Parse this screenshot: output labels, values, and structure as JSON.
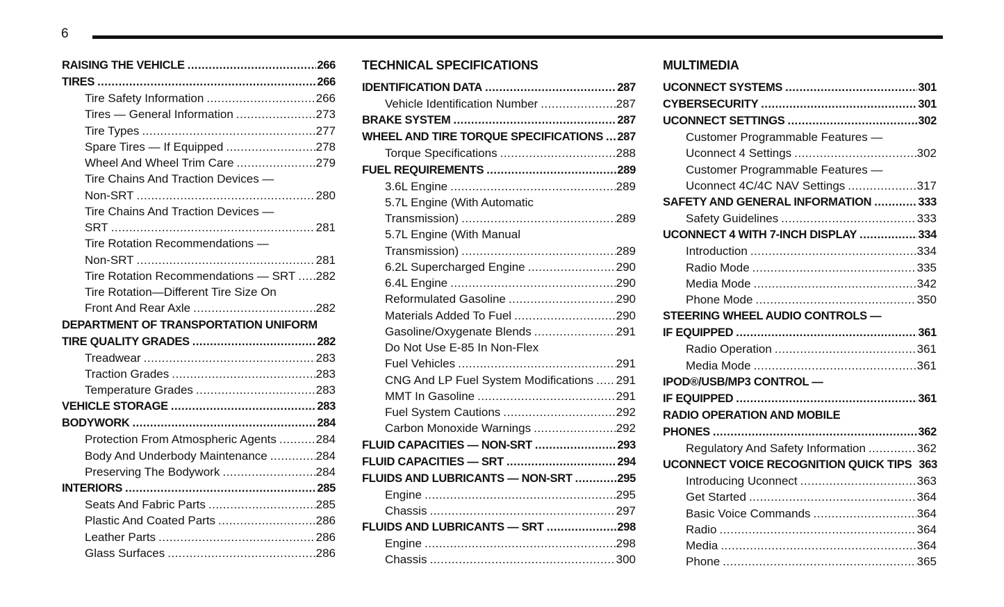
{
  "page_number": "6",
  "columns": [
    {
      "heading": "",
      "entries": [
        {
          "t": "RAISING THE VEHICLE",
          "p": "266",
          "b": true
        },
        {
          "t": "TIRES",
          "p": "266",
          "b": true
        },
        {
          "t": "Tire Safety Information",
          "p": "266",
          "i": true
        },
        {
          "t": "Tires — General Information",
          "p": "273",
          "i": true
        },
        {
          "t": "Tire Types",
          "p": "277",
          "i": true
        },
        {
          "t": "Spare Tires — If Equipped",
          "p": "278",
          "i": true
        },
        {
          "t": "Wheel And Wheel Trim Care",
          "p": "279",
          "i": true
        },
        {
          "t": "Tire Chains And Traction Devices —",
          "i": true
        },
        {
          "t": "Non-SRT",
          "p": "280",
          "i": true
        },
        {
          "t": "Tire Chains And Traction Devices —",
          "i": true
        },
        {
          "t": "SRT",
          "p": "281",
          "i": true
        },
        {
          "t": "Tire Rotation Recommendations —",
          "i": true
        },
        {
          "t": "Non-SRT",
          "p": "281",
          "i": true
        },
        {
          "t": "Tire Rotation Recommendations — SRT",
          "p": "282",
          "i": true
        },
        {
          "t": "Tire Rotation—Different Tire Size On",
          "i": true
        },
        {
          "t": "Front And Rear Axle",
          "p": "282",
          "i": true
        },
        {
          "t": "DEPARTMENT OF TRANSPORTATION UNIFORM",
          "b": true
        },
        {
          "t": "TIRE QUALITY GRADES",
          "p": "282",
          "b": true
        },
        {
          "t": "Treadwear",
          "p": "283",
          "i": true
        },
        {
          "t": "Traction Grades",
          "p": "283",
          "i": true
        },
        {
          "t": "Temperature Grades",
          "p": "283",
          "i": true
        },
        {
          "t": "VEHICLE STORAGE",
          "p": "283",
          "b": true
        },
        {
          "t": "BODYWORK",
          "p": "284",
          "b": true
        },
        {
          "t": "Protection From Atmospheric Agents",
          "p": "284",
          "i": true
        },
        {
          "t": "Body And Underbody Maintenance",
          "p": "284",
          "i": true
        },
        {
          "t": "Preserving The Bodywork",
          "p": "284",
          "i": true
        },
        {
          "t": "INTERIORS",
          "p": "285",
          "b": true
        },
        {
          "t": "Seats And Fabric Parts",
          "p": "285",
          "i": true
        },
        {
          "t": "Plastic And Coated Parts",
          "p": "286",
          "i": true
        },
        {
          "t": "Leather Parts",
          "p": "286",
          "i": true
        },
        {
          "t": "Glass Surfaces",
          "p": "286",
          "i": true
        }
      ]
    },
    {
      "heading": "TECHNICAL SPECIFICATIONS",
      "entries": [
        {
          "t": "IDENTIFICATION DATA",
          "p": "287",
          "b": true
        },
        {
          "t": "Vehicle Identification Number",
          "p": "287",
          "i": true
        },
        {
          "t": "BRAKE SYSTEM",
          "p": "287",
          "b": true
        },
        {
          "t": "WHEEL AND TIRE TORQUE SPECIFICATIONS",
          "p": "287",
          "b": true
        },
        {
          "t": "Torque Specifications",
          "p": "288",
          "i": true
        },
        {
          "t": "FUEL REQUIREMENTS",
          "p": "289",
          "b": true
        },
        {
          "t": "3.6L Engine",
          "p": "289",
          "i": true
        },
        {
          "t": "5.7L Engine (With Automatic",
          "i": true
        },
        {
          "t": "Transmission)",
          "p": "289",
          "i": true
        },
        {
          "t": "5.7L Engine (With Manual",
          "i": true
        },
        {
          "t": "Transmission)",
          "p": "289",
          "i": true
        },
        {
          "t": "6.2L Supercharged Engine",
          "p": "290",
          "i": true
        },
        {
          "t": "6.4L Engine",
          "p": "290",
          "i": true
        },
        {
          "t": "Reformulated Gasoline",
          "p": "290",
          "i": true
        },
        {
          "t": "Materials Added To Fuel",
          "p": "290",
          "i": true
        },
        {
          "t": "Gasoline/Oxygenate Blends",
          "p": "291",
          "i": true
        },
        {
          "t": "Do Not Use E-85 In Non-Flex",
          "i": true
        },
        {
          "t": "Fuel Vehicles",
          "p": "291",
          "i": true
        },
        {
          "t": "CNG And LP Fuel System Modifications",
          "p": "291",
          "i": true
        },
        {
          "t": "MMT In Gasoline",
          "p": "291",
          "i": true
        },
        {
          "t": "Fuel System Cautions",
          "p": "292",
          "i": true
        },
        {
          "t": "Carbon Monoxide Warnings",
          "p": "292",
          "i": true
        },
        {
          "t": "FLUID CAPACITIES — NON-SRT",
          "p": "293",
          "b": true
        },
        {
          "t": "FLUID CAPACITIES — SRT",
          "p": "294",
          "b": true
        },
        {
          "t": "FLUIDS AND LUBRICANTS — NON-SRT",
          "p": "295",
          "b": true
        },
        {
          "t": "Engine",
          "p": "295",
          "i": true
        },
        {
          "t": "Chassis",
          "p": "297",
          "i": true
        },
        {
          "t": "FLUIDS AND LUBRICANTS — SRT",
          "p": "298",
          "b": true
        },
        {
          "t": "Engine",
          "p": "298",
          "i": true
        },
        {
          "t": "Chassis",
          "p": "300",
          "i": true
        }
      ]
    },
    {
      "heading": "MULTIMEDIA",
      "entries": [
        {
          "t": "UCONNECT SYSTEMS",
          "p": "301",
          "b": true
        },
        {
          "t": "CYBERSECURITY",
          "p": "301",
          "b": true
        },
        {
          "t": "UCONNECT SETTINGS",
          "p": "302",
          "b": true
        },
        {
          "t": "Customer Programmable Features —",
          "i": true
        },
        {
          "t": "Uconnect 4 Settings",
          "p": "302",
          "i": true
        },
        {
          "t": "Customer Programmable Features —",
          "i": true
        },
        {
          "t": "Uconnect 4C/4C NAV Settings",
          "p": "317",
          "i": true
        },
        {
          "t": "SAFETY AND GENERAL INFORMATION",
          "p": "333",
          "b": true
        },
        {
          "t": "Safety Guidelines",
          "p": "333",
          "i": true
        },
        {
          "t": "UCONNECT 4 WITH 7-INCH DISPLAY",
          "p": "334",
          "b": true
        },
        {
          "t": "Introduction",
          "p": "334",
          "i": true
        },
        {
          "t": "Radio Mode",
          "p": "335",
          "i": true
        },
        {
          "t": "Media Mode",
          "p": "342",
          "i": true
        },
        {
          "t": "Phone Mode",
          "p": "350",
          "i": true
        },
        {
          "t": "STEERING WHEEL AUDIO CONTROLS —",
          "b": true
        },
        {
          "t": "IF EQUIPPED",
          "p": "361",
          "b": true
        },
        {
          "t": "Radio Operation",
          "p": "361",
          "i": true
        },
        {
          "t": "Media Mode",
          "p": "361",
          "i": true
        },
        {
          "t": "IPOD®/USB/MP3 CONTROL —",
          "b": true
        },
        {
          "t": "IF EQUIPPED",
          "p": "361",
          "b": true
        },
        {
          "t": "RADIO OPERATION AND MOBILE",
          "b": true
        },
        {
          "t": "PHONES",
          "p": "362",
          "b": true
        },
        {
          "t": "Regulatory And Safety Information",
          "p": "362",
          "i": true
        },
        {
          "t": "UCONNECT VOICE RECOGNITION QUICK TIPS",
          "p": "363",
          "b": true,
          "nodots": true
        },
        {
          "t": "Introducing Uconnect",
          "p": "363",
          "i": true
        },
        {
          "t": "Get Started",
          "p": "364",
          "i": true
        },
        {
          "t": "Basic Voice Commands",
          "p": "364",
          "i": true
        },
        {
          "t": "Radio",
          "p": "364",
          "i": true
        },
        {
          "t": "Media",
          "p": "364",
          "i": true
        },
        {
          "t": "Phone",
          "p": "365",
          "i": true
        }
      ]
    }
  ]
}
